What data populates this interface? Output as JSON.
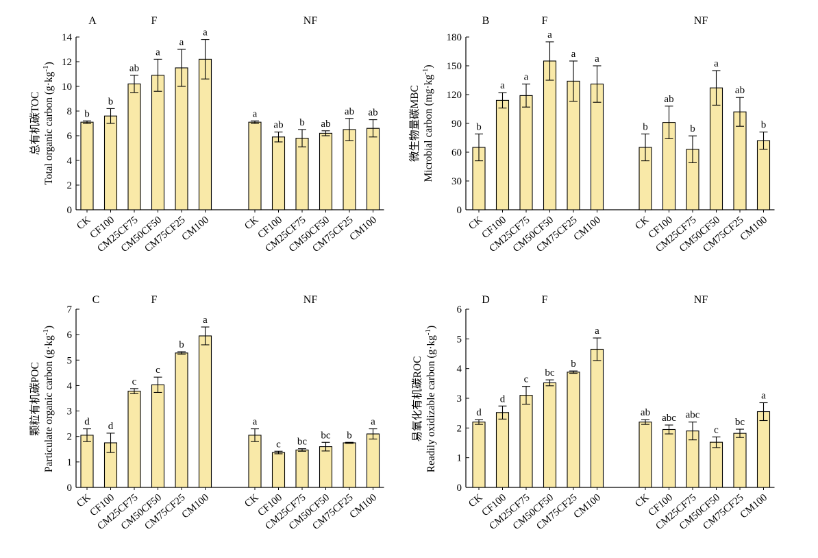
{
  "style": {
    "bar_fill": "#f9e9a8",
    "bar_stroke": "#000000"
  },
  "chart_data": [
    {
      "type": "bar",
      "panel_label": "A",
      "group_labels": [
        "F",
        "NF"
      ],
      "ylabel_cn": "总有机碳TOC",
      "ylabel_en": "Total organic carbon (g·kg",
      "ylabel_sup": "-1",
      "ylabel_close": ")",
      "ylim": [
        0,
        14
      ],
      "yticks": [
        0,
        2,
        4,
        6,
        8,
        10,
        12,
        14
      ],
      "categories": [
        "CK",
        "CF100",
        "CM25CF75",
        "CM50CF50",
        "CM75CF25",
        "CM100"
      ],
      "groups": [
        {
          "name": "F",
          "values": [
            7.1,
            7.6,
            10.2,
            10.9,
            11.5,
            12.2
          ],
          "errors": [
            0.1,
            0.6,
            0.7,
            1.3,
            1.5,
            1.6
          ],
          "significance": [
            "b",
            "b",
            "ab",
            "a",
            "a",
            "a"
          ]
        },
        {
          "name": "NF",
          "values": [
            7.1,
            5.9,
            5.8,
            6.2,
            6.5,
            6.6
          ],
          "errors": [
            0.1,
            0.4,
            0.7,
            0.2,
            0.9,
            0.7
          ],
          "significance": [
            "a",
            "ab",
            "b",
            "ab",
            "ab",
            "ab"
          ]
        }
      ]
    },
    {
      "type": "bar",
      "panel_label": "B",
      "group_labels": [
        "F",
        "NF"
      ],
      "ylabel_cn": "微生物量碳MBC",
      "ylabel_en": "Microbial carbon (mg·kg",
      "ylabel_sup": "-1",
      "ylabel_close": ")",
      "ylim": [
        0,
        180
      ],
      "yticks": [
        0,
        30,
        60,
        90,
        120,
        150,
        180
      ],
      "categories": [
        "CK",
        "CF100",
        "CM25CF75",
        "CM50CF50",
        "CM75CF25",
        "CM100"
      ],
      "groups": [
        {
          "name": "F",
          "values": [
            65,
            114,
            119,
            155,
            134,
            131
          ],
          "errors": [
            14,
            8,
            12,
            20,
            21,
            19
          ],
          "significance": [
            "b",
            "a",
            "a",
            "a",
            "a",
            "a"
          ]
        },
        {
          "name": "NF",
          "values": [
            65,
            91,
            63,
            127,
            102,
            72
          ],
          "errors": [
            14,
            17,
            14,
            18,
            15,
            9
          ],
          "significance": [
            "b",
            "ab",
            "b",
            "a",
            "ab",
            "b"
          ]
        }
      ]
    },
    {
      "type": "bar",
      "panel_label": "C",
      "group_labels": [
        "F",
        "NF"
      ],
      "ylabel_cn": "颗粒有机碳POC",
      "ylabel_en": "Particulate organic carbon (g·kg",
      "ylabel_sup": "-1",
      "ylabel_close": ")",
      "ylim": [
        0,
        7
      ],
      "yticks": [
        0,
        1,
        2,
        3,
        4,
        5,
        6,
        7
      ],
      "categories": [
        "CK",
        "CF100",
        "CM25CF75",
        "CM50CF50",
        "CM75CF25",
        "CM100"
      ],
      "groups": [
        {
          "name": "F",
          "values": [
            2.05,
            1.75,
            3.78,
            4.03,
            5.28,
            5.95
          ],
          "errors": [
            0.25,
            0.38,
            0.1,
            0.3,
            0.05,
            0.35
          ],
          "significance": [
            "d",
            "d",
            "c",
            "c",
            "b",
            "a"
          ]
        },
        {
          "name": "NF",
          "values": [
            2.05,
            1.37,
            1.47,
            1.6,
            1.75,
            2.1
          ],
          "errors": [
            0.25,
            0.05,
            0.05,
            0.17,
            0.02,
            0.2
          ],
          "significance": [
            "a",
            "c",
            "bc",
            "bc",
            "b",
            "a"
          ]
        }
      ]
    },
    {
      "type": "bar",
      "panel_label": "D",
      "group_labels": [
        "F",
        "NF"
      ],
      "ylabel_cn": "易氧化有机碳ROC",
      "ylabel_en": "Readily oxidizable carbon (g·kg",
      "ylabel_sup": "-1",
      "ylabel_close": ")",
      "ylim": [
        0,
        6
      ],
      "yticks": [
        0,
        1,
        2,
        3,
        4,
        5,
        6
      ],
      "categories": [
        "CK",
        "CF100",
        "CM25CF75",
        "CM50CF50",
        "CM75CF25",
        "CM100"
      ],
      "groups": [
        {
          "name": "F",
          "values": [
            2.2,
            2.52,
            3.1,
            3.52,
            3.88,
            4.65
          ],
          "errors": [
            0.08,
            0.22,
            0.3,
            0.1,
            0.04,
            0.38
          ],
          "significance": [
            "d",
            "d",
            "c",
            "bc",
            "b",
            "a"
          ]
        },
        {
          "name": "NF",
          "values": [
            2.2,
            1.95,
            1.9,
            1.52,
            1.82,
            2.55
          ],
          "errors": [
            0.08,
            0.15,
            0.3,
            0.18,
            0.14,
            0.3
          ],
          "significance": [
            "ab",
            "abc",
            "abc",
            "c",
            "bc",
            "a"
          ]
        }
      ]
    }
  ]
}
